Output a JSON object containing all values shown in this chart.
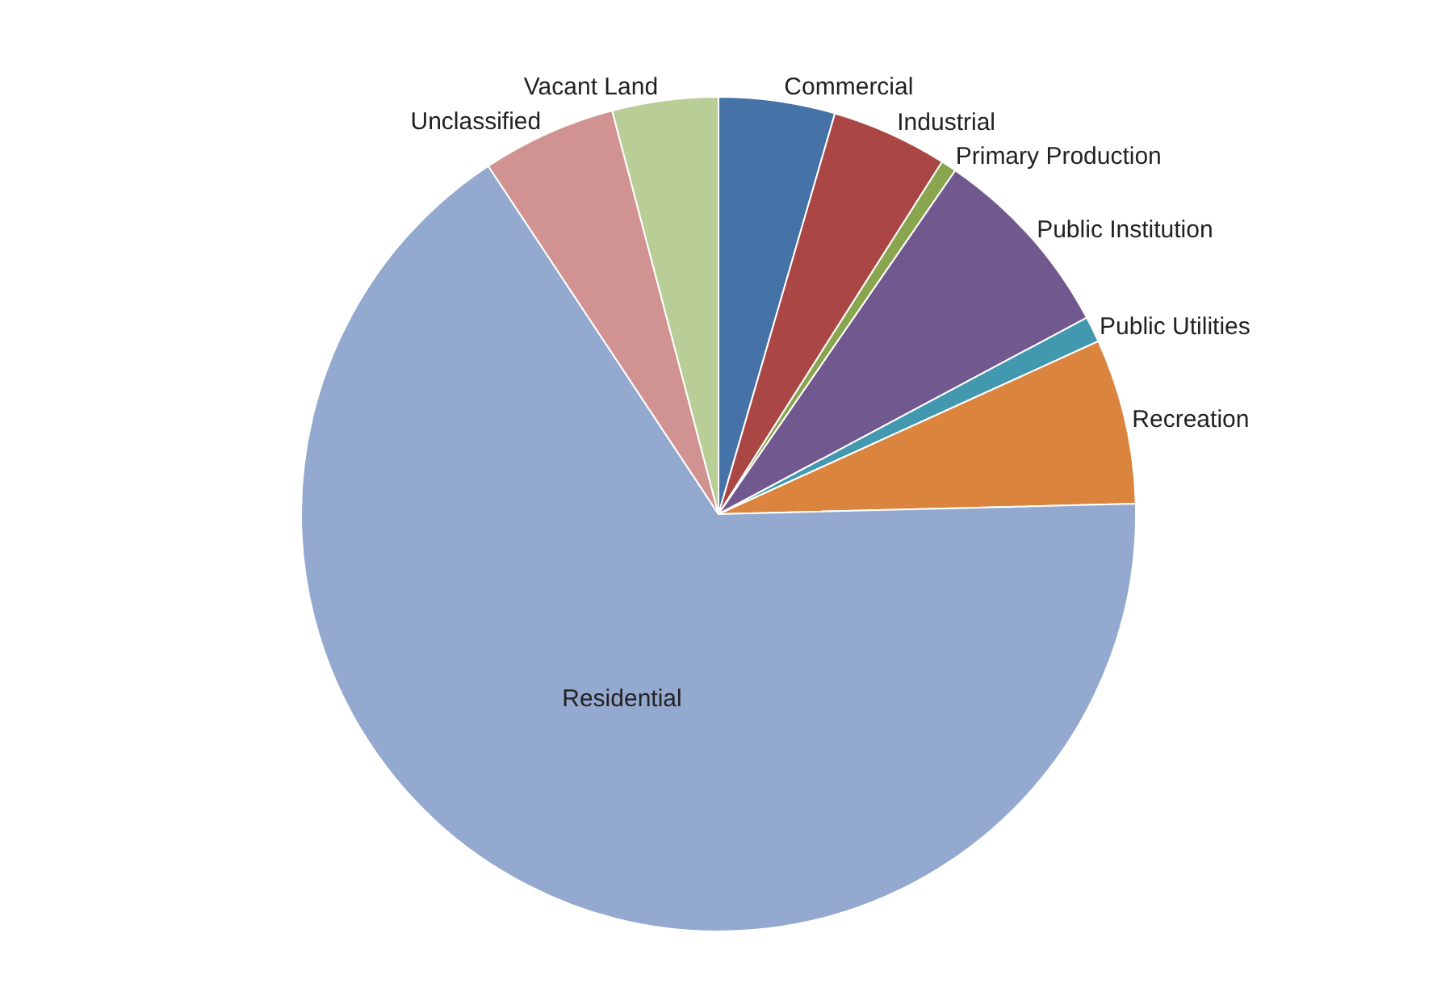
{
  "chart_data": {
    "type": "pie",
    "categories": [
      "Commercial",
      "Industrial",
      "Primary Production",
      "Public Institution",
      "Public Utilities",
      "Recreation",
      "Residential",
      "Unclassified",
      "Vacant Land"
    ],
    "values": [
      4.5,
      4.5,
      0.6,
      7.6,
      1.0,
      6.4,
      66.1,
      5.2,
      4.1
    ],
    "colors": [
      "#4572a7",
      "#aa4643",
      "#89a54e",
      "#71588f",
      "#4198af",
      "#db843d",
      "#93a9cf",
      "#d19392",
      "#b9cd96"
    ],
    "legend": false
  }
}
